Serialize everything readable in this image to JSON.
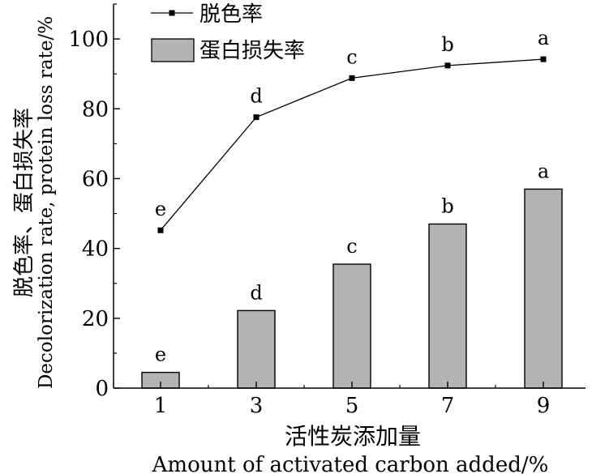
{
  "chart_data": {
    "type": "bar",
    "categories": [
      "1",
      "3",
      "5",
      "7",
      "9"
    ],
    "xlabel_cn": "活性炭添加量",
    "xlabel_en": "Amount of activated carbon added/%",
    "ylabel_cn": "脱色率、蛋白损失率",
    "ylabel_en": "Decolorization rate, protein loss rate/%",
    "ylim": [
      0,
      110
    ],
    "yticks": [
      "0",
      "20",
      "40",
      "60",
      "80",
      "100"
    ],
    "legend_position": "top-left",
    "colors": {
      "bar": "#b3b3b3",
      "line": "#000000"
    },
    "series": [
      {
        "name": "脱色率",
        "kind": "line",
        "values": [
          45.2,
          77.6,
          88.8,
          92.4,
          94.2
        ],
        "labels": [
          "e",
          "d",
          "c",
          "b",
          "a"
        ]
      },
      {
        "name": "蛋白损失率",
        "kind": "bar",
        "values": [
          4.5,
          22.2,
          35.5,
          47.0,
          57.0
        ],
        "labels": [
          "e",
          "d",
          "c",
          "b",
          "a"
        ]
      }
    ]
  }
}
